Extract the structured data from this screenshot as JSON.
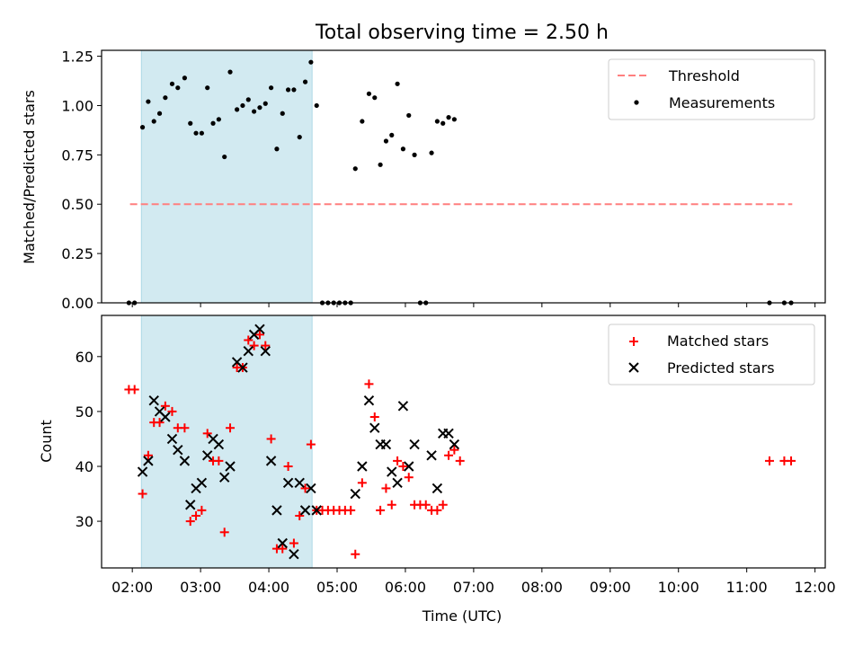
{
  "figure": {
    "title": "Total observing time = 2.50 h"
  },
  "colors": {
    "background": "#ffffff",
    "shade": "#add8e6",
    "threshold": "#ff7f7f",
    "matched": "#ff0000",
    "predicted": "#000000",
    "measurement": "#000000"
  },
  "chart_data": [
    {
      "type": "scatter",
      "ylabel": "Matched/Predicted stars",
      "ylim": [
        0,
        1.28
      ],
      "yticks": [
        "0.00",
        "0.25",
        "0.50",
        "0.75",
        "1.00",
        "1.25"
      ],
      "xlim_hours": [
        1.55,
        12.15
      ],
      "grid": false,
      "legend": {
        "placement": "top-right",
        "entries": [
          "Threshold",
          "Measurements"
        ]
      },
      "shaded_span": {
        "x0": "02:08",
        "x1": "04:38"
      },
      "threshold": {
        "name": "Threshold",
        "y": 0.5,
        "x0": "01:58",
        "x1": "11:40",
        "style": "dashed"
      },
      "series": [
        {
          "name": "Measurements",
          "points": [
            [
              "01:57",
              0
            ],
            [
              "02:02",
              0
            ],
            [
              "02:09",
              0.89
            ],
            [
              "02:14",
              1.02
            ],
            [
              "02:19",
              0.92
            ],
            [
              "02:24",
              0.96
            ],
            [
              "02:29",
              1.04
            ],
            [
              "02:35",
              1.11
            ],
            [
              "02:40",
              1.09
            ],
            [
              "02:46",
              1.14
            ],
            [
              "02:51",
              0.91
            ],
            [
              "02:56",
              0.86
            ],
            [
              "03:01",
              0.86
            ],
            [
              "03:06",
              1.09
            ],
            [
              "03:11",
              0.91
            ],
            [
              "03:16",
              0.93
            ],
            [
              "03:21",
              0.74
            ],
            [
              "03:26",
              1.17
            ],
            [
              "03:32",
              0.98
            ],
            [
              "03:37",
              1.0
            ],
            [
              "03:42",
              1.03
            ],
            [
              "03:47",
              0.97
            ],
            [
              "03:52",
              0.99
            ],
            [
              "03:57",
              1.01
            ],
            [
              "04:02",
              1.09
            ],
            [
              "04:07",
              0.78
            ],
            [
              "04:12",
              0.96
            ],
            [
              "04:17",
              1.08
            ],
            [
              "04:22",
              1.08
            ],
            [
              "04:27",
              0.84
            ],
            [
              "04:32",
              1.12
            ],
            [
              "04:37",
              1.22
            ],
            [
              "04:42",
              1.0
            ],
            [
              "04:47",
              0
            ],
            [
              "04:52",
              0
            ],
            [
              "04:57",
              0
            ],
            [
              "05:02",
              0
            ],
            [
              "05:07",
              0
            ],
            [
              "05:12",
              0
            ],
            [
              "05:16",
              0.68
            ],
            [
              "05:22",
              0.92
            ],
            [
              "05:28",
              1.06
            ],
            [
              "05:33",
              1.04
            ],
            [
              "05:38",
              0.7
            ],
            [
              "05:43",
              0.82
            ],
            [
              "05:48",
              0.85
            ],
            [
              "05:53",
              1.11
            ],
            [
              "05:58",
              0.78
            ],
            [
              "06:03",
              0.95
            ],
            [
              "06:08",
              0.75
            ],
            [
              "06:13",
              0
            ],
            [
              "06:18",
              0
            ],
            [
              "06:23",
              0.76
            ],
            [
              "06:28",
              0.92
            ],
            [
              "06:33",
              0.91
            ],
            [
              "06:38",
              0.94
            ],
            [
              "06:43",
              0.93
            ],
            [
              "11:20",
              0
            ],
            [
              "11:33",
              0
            ],
            [
              "11:39",
              0
            ]
          ]
        }
      ]
    },
    {
      "type": "scatter",
      "xlabel": "Time (UTC)",
      "ylabel": "Count",
      "ylim": [
        21.5,
        67.5
      ],
      "yticks": [
        "30",
        "40",
        "50",
        "60"
      ],
      "xticks": [
        "02:00",
        "03:00",
        "04:00",
        "05:00",
        "06:00",
        "07:00",
        "08:00",
        "09:00",
        "10:00",
        "11:00",
        "12:00"
      ],
      "xlim_hours": [
        1.55,
        12.15
      ],
      "grid": false,
      "legend": {
        "placement": "top-right",
        "entries": [
          "Matched stars",
          "Predicted stars"
        ]
      },
      "shaded_span": {
        "x0": "02:08",
        "x1": "04:38"
      },
      "series": [
        {
          "name": "Matched stars",
          "marker": "plus",
          "points": [
            [
              "01:57",
              54
            ],
            [
              "02:02",
              54
            ],
            [
              "02:09",
              35
            ],
            [
              "02:14",
              42
            ],
            [
              "02:19",
              48
            ],
            [
              "02:24",
              48
            ],
            [
              "02:29",
              51
            ],
            [
              "02:35",
              50
            ],
            [
              "02:40",
              47
            ],
            [
              "02:46",
              47
            ],
            [
              "02:51",
              30
            ],
            [
              "02:56",
              31
            ],
            [
              "03:01",
              32
            ],
            [
              "03:06",
              46
            ],
            [
              "03:11",
              41
            ],
            [
              "03:16",
              41
            ],
            [
              "03:21",
              28
            ],
            [
              "03:26",
              47
            ],
            [
              "03:32",
              58
            ],
            [
              "03:37",
              58
            ],
            [
              "03:42",
              63
            ],
            [
              "03:47",
              62
            ],
            [
              "03:52",
              64
            ],
            [
              "03:57",
              62
            ],
            [
              "04:02",
              45
            ],
            [
              "04:07",
              25
            ],
            [
              "04:12",
              25
            ],
            [
              "04:17",
              40
            ],
            [
              "04:22",
              26
            ],
            [
              "04:27",
              31
            ],
            [
              "04:32",
              36
            ],
            [
              "04:37",
              44
            ],
            [
              "04:42",
              32
            ],
            [
              "04:47",
              32
            ],
            [
              "04:52",
              32
            ],
            [
              "04:57",
              32
            ],
            [
              "05:02",
              32
            ],
            [
              "05:07",
              32
            ],
            [
              "05:12",
              32
            ],
            [
              "05:16",
              24
            ],
            [
              "05:22",
              37
            ],
            [
              "05:28",
              55
            ],
            [
              "05:33",
              49
            ],
            [
              "05:38",
              32
            ],
            [
              "05:43",
              36
            ],
            [
              "05:48",
              33
            ],
            [
              "05:53",
              41
            ],
            [
              "05:58",
              40
            ],
            [
              "06:03",
              38
            ],
            [
              "06:08",
              33
            ],
            [
              "06:13",
              33
            ],
            [
              "06:18",
              33
            ],
            [
              "06:23",
              32
            ],
            [
              "06:28",
              32
            ],
            [
              "06:33",
              33
            ],
            [
              "06:38",
              42
            ],
            [
              "06:43",
              43
            ],
            [
              "06:48",
              41
            ],
            [
              "11:20",
              41
            ],
            [
              "11:33",
              41
            ],
            [
              "11:39",
              41
            ]
          ]
        },
        {
          "name": "Predicted stars",
          "marker": "x",
          "points": [
            [
              "02:09",
              39
            ],
            [
              "02:14",
              41
            ],
            [
              "02:19",
              52
            ],
            [
              "02:24",
              50
            ],
            [
              "02:29",
              49
            ],
            [
              "02:35",
              45
            ],
            [
              "02:40",
              43
            ],
            [
              "02:46",
              41
            ],
            [
              "02:51",
              33
            ],
            [
              "02:56",
              36
            ],
            [
              "03:01",
              37
            ],
            [
              "03:06",
              42
            ],
            [
              "03:11",
              45
            ],
            [
              "03:16",
              44
            ],
            [
              "03:21",
              38
            ],
            [
              "03:26",
              40
            ],
            [
              "03:32",
              59
            ],
            [
              "03:37",
              58
            ],
            [
              "03:42",
              61
            ],
            [
              "03:47",
              64
            ],
            [
              "03:52",
              65
            ],
            [
              "03:57",
              61
            ],
            [
              "04:02",
              41
            ],
            [
              "04:07",
              32
            ],
            [
              "04:12",
              26
            ],
            [
              "04:17",
              37
            ],
            [
              "04:22",
              24
            ],
            [
              "04:27",
              37
            ],
            [
              "04:32",
              32
            ],
            [
              "04:37",
              36
            ],
            [
              "04:42",
              32
            ],
            [
              "05:16",
              35
            ],
            [
              "05:22",
              40
            ],
            [
              "05:28",
              52
            ],
            [
              "05:33",
              47
            ],
            [
              "05:38",
              44
            ],
            [
              "05:43",
              44
            ],
            [
              "05:48",
              39
            ],
            [
              "05:53",
              37
            ],
            [
              "05:58",
              51
            ],
            [
              "06:03",
              40
            ],
            [
              "06:08",
              44
            ],
            [
              "06:23",
              42
            ],
            [
              "06:28",
              36
            ],
            [
              "06:33",
              46
            ],
            [
              "06:38",
              46
            ],
            [
              "06:43",
              44
            ]
          ]
        }
      ]
    }
  ]
}
